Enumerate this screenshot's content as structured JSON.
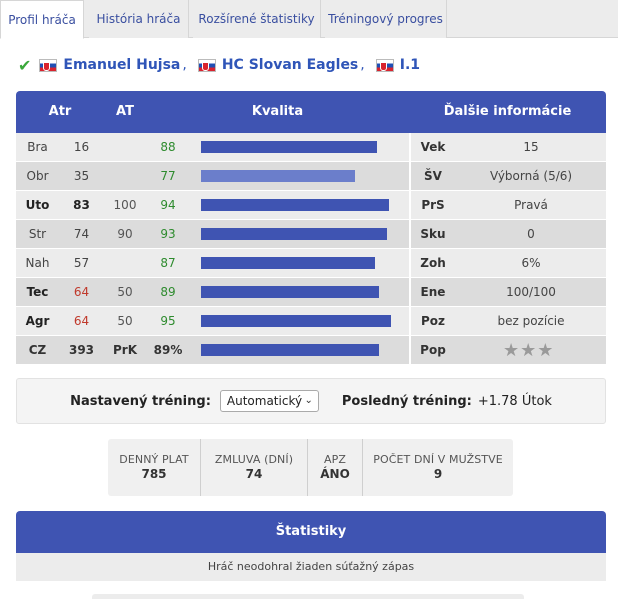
{
  "tabs": [
    {
      "label": "Profil hráča",
      "active": true
    },
    {
      "label": "História hráča",
      "active": false
    },
    {
      "label": "Rozšírené štatistiky",
      "active": false
    },
    {
      "label": "Tréningový progres",
      "active": false
    }
  ],
  "player": {
    "status_icon": "check-icon",
    "name": "Emanuel Hujsa",
    "team": "HC Slovan Eagles",
    "league": "I.1",
    "flag": "slovakia-flag-icon",
    "separator": ","
  },
  "attributes_table": {
    "headers": {
      "atr": "Atr",
      "at": "AT",
      "kvalita": "Kvalita",
      "dalsie": "Ďalšie informácie"
    },
    "rows": [
      {
        "name": "Bra",
        "value": "16",
        "at": "",
        "quality": "88",
        "quality_level": 88,
        "info_key": "Vek",
        "info_value": "15"
      },
      {
        "name": "Obr",
        "value": "35",
        "at": "",
        "quality": "77",
        "quality_level": 77,
        "info_key": "ŠV",
        "info_value": "Výborná (5/6)"
      },
      {
        "name": "Uto",
        "value": "83",
        "at": "100",
        "quality": "94",
        "quality_level": 94,
        "info_key": "PrS",
        "info_value": "Pravá"
      },
      {
        "name": "Str",
        "value": "74",
        "at": "90",
        "quality": "93",
        "quality_level": 93,
        "info_key": "Sku",
        "info_value": "0"
      },
      {
        "name": "Nah",
        "value": "57",
        "at": "",
        "quality": "87",
        "quality_level": 87,
        "info_key": "Zoh",
        "info_value": "6%"
      },
      {
        "name": "Tec",
        "value": "64",
        "at": "50",
        "quality": "89",
        "quality_level": 89,
        "info_key": "Ene",
        "info_value": "100/100"
      },
      {
        "name": "Agr",
        "value": "64",
        "at": "50",
        "quality": "95",
        "quality_level": 95,
        "info_key": "Poz",
        "info_value": "bez pozície"
      }
    ],
    "summary": {
      "name": "CZ",
      "value": "393",
      "at": "PrK",
      "quality": "89%",
      "quality_level": 89,
      "info_key": "Pop",
      "stars": 3
    }
  },
  "training": {
    "set_label": "Nastavený tréning:",
    "set_value": "Automatický",
    "last_label": "Posledný tréning:",
    "last_value": "+1.78 Útok"
  },
  "contract": [
    {
      "key": "DENNÝ PLAT",
      "value": "785"
    },
    {
      "key": "ZMLUVA (DNÍ)",
      "value": "74"
    },
    {
      "key": "APZ",
      "value": "ÁNO"
    },
    {
      "key": "POČET DNÍ V MUŽSTVE",
      "value": "9"
    }
  ],
  "statistics": {
    "title": "Štatistiky",
    "empty_text": "Hráč neodohral žiaden súťažný zápas"
  },
  "colors": {
    "accent": "#3f54b2",
    "accent_light": "#6b7ecb",
    "quality_green": "#2e8b2e",
    "warn_red": "#c0392b",
    "link": "#2f55b8"
  }
}
